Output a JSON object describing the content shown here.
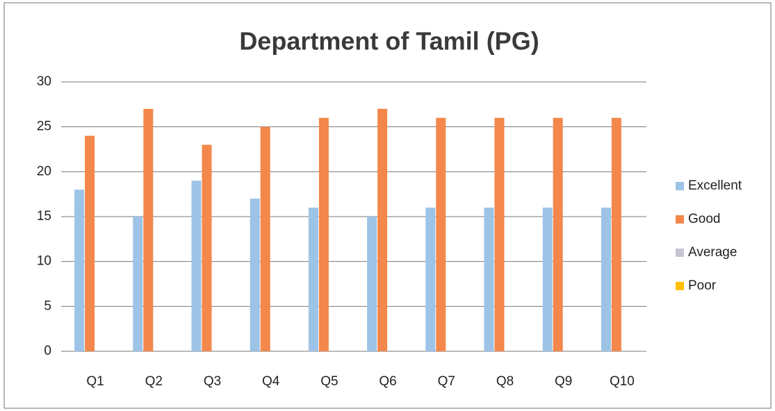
{
  "chart_data": {
    "type": "bar",
    "title": "Department of Tamil (PG)",
    "categories": [
      "Q1",
      "Q2",
      "Q3",
      "Q4",
      "Q5",
      "Q6",
      "Q7",
      "Q8",
      "Q9",
      "Q10"
    ],
    "series": [
      {
        "name": "Excellent",
        "color": "#9dc3e6",
        "values": [
          18,
          15,
          19,
          17,
          16,
          15,
          16,
          16,
          16,
          16
        ]
      },
      {
        "name": "Good",
        "color": "#f4874b",
        "values": [
          24,
          27,
          23,
          25,
          26,
          27,
          26,
          26,
          26,
          26
        ]
      },
      {
        "name": "Average",
        "color": "#c8c3d3",
        "values": [
          0,
          0,
          0,
          0,
          0,
          0,
          0,
          0,
          0,
          0
        ]
      },
      {
        "name": "Poor",
        "color": "#ffc000",
        "values": [
          0,
          0,
          0,
          0,
          0,
          0,
          0,
          0,
          0,
          0
        ]
      }
    ],
    "ylim": [
      0,
      30
    ],
    "yticks": [
      0,
      5,
      10,
      15,
      20,
      25,
      30
    ],
    "grid": true,
    "legend": "right"
  }
}
